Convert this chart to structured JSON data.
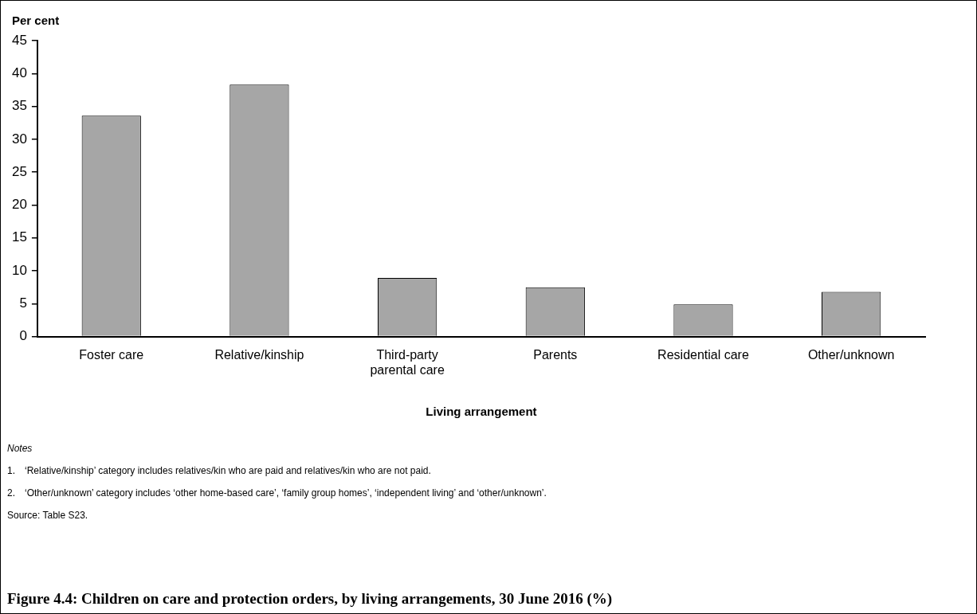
{
  "chart_data": {
    "type": "bar",
    "title": "Figure 4.4: Children on care and protection orders, by living arrangements, 30 June 2016 (%)",
    "ylabel": "Per cent",
    "xlabel": "Living arrangement",
    "categories": [
      "Foster care",
      "Relative/kinship",
      "Third-party parental care",
      "Parents",
      "Residential care",
      "Other/unknown"
    ],
    "values": [
      33.6,
      38.3,
      8.9,
      7.5,
      4.9,
      6.8
    ],
    "color": "#a6a6a6",
    "ylim": [
      0,
      45
    ],
    "yticks": [
      0,
      5,
      10,
      15,
      20,
      25,
      30,
      35,
      40,
      45
    ],
    "grid": false,
    "legend": false,
    "annotations": [
      "Notes",
      "1. ‘Relative/kinship’ category includes relatives/kin who are paid and relatives/kin who are not paid.",
      "2. ‘Other/unknown’ category includes ‘other home-based care’, ‘family group homes’, ‘independent living’ and ‘other/unknown’.",
      "Source: Table S23."
    ]
  }
}
